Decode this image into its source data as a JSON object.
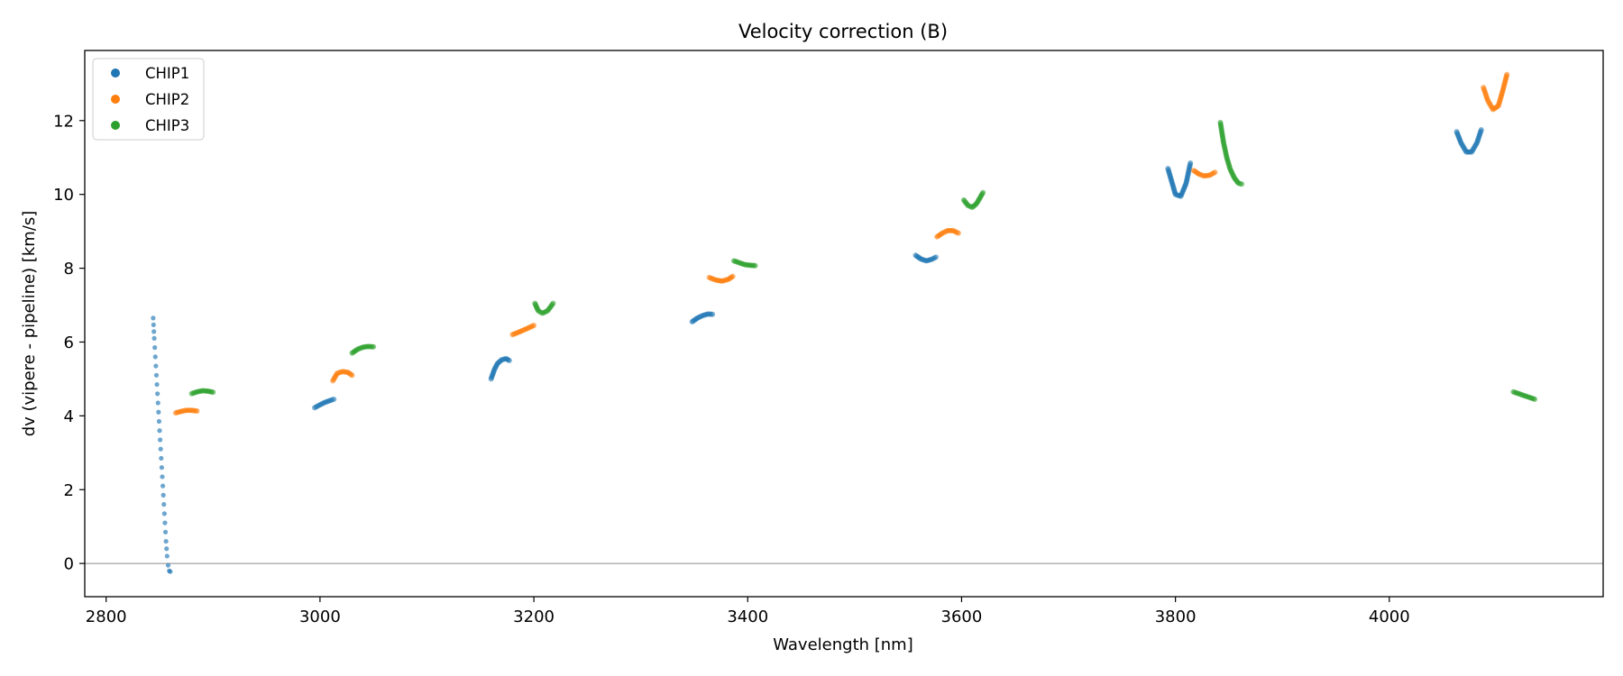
{
  "chart_data": {
    "type": "scatter",
    "title": "Velocity correction (B)",
    "xlabel": "Wavelength [nm]",
    "ylabel": "dv (vipere - pipeline) [km/s]",
    "xlim": [
      2780,
      4200
    ],
    "ylim": [
      -0.9,
      13.9
    ],
    "xticks": [
      2800,
      3000,
      3200,
      3400,
      3600,
      3800,
      4000
    ],
    "yticks": [
      0,
      2,
      4,
      6,
      8,
      10,
      12
    ],
    "grid": false,
    "legend_position": "top-left",
    "reference_line_y": 0,
    "series": [
      {
        "name": "CHIP1",
        "color": "#1f77b4",
        "segments": [
          [
            [
              2844,
              6.65
            ],
            [
              2845,
              6.1
            ],
            [
              2846,
              5.6
            ],
            [
              2847,
              5.1
            ],
            [
              2848,
              4.6
            ],
            [
              2849,
              4.1
            ],
            [
              2850,
              3.6
            ],
            [
              2851,
              3.1
            ],
            [
              2852,
              2.6
            ],
            [
              2853,
              2.1
            ],
            [
              2854,
              1.6
            ],
            [
              2855,
              1.1
            ],
            [
              2856,
              0.6
            ],
            [
              2857,
              0.2
            ],
            [
              2858,
              -0.05
            ],
            [
              2859,
              -0.2
            ],
            [
              2860,
              -0.22
            ]
          ],
          [
            [
              2995,
              4.22
            ],
            [
              3000,
              4.3
            ],
            [
              3005,
              4.37
            ],
            [
              3010,
              4.42
            ],
            [
              3013,
              4.45
            ]
          ],
          [
            [
              3160,
              5.0
            ],
            [
              3163,
              5.25
            ],
            [
              3166,
              5.42
            ],
            [
              3170,
              5.52
            ],
            [
              3174,
              5.55
            ],
            [
              3177,
              5.5
            ]
          ],
          [
            [
              3348,
              6.55
            ],
            [
              3353,
              6.65
            ],
            [
              3358,
              6.72
            ],
            [
              3363,
              6.76
            ],
            [
              3367,
              6.75
            ]
          ],
          [
            [
              3557,
              8.35
            ],
            [
              3562,
              8.25
            ],
            [
              3567,
              8.2
            ],
            [
              3572,
              8.24
            ],
            [
              3576,
              8.3
            ]
          ],
          [
            [
              3793,
              10.7
            ],
            [
              3796,
              10.4
            ],
            [
              3800,
              10.0
            ],
            [
              3805,
              9.95
            ],
            [
              3810,
              10.3
            ],
            [
              3814,
              10.85
            ]
          ],
          [
            [
              4063,
              11.7
            ],
            [
              4067,
              11.4
            ],
            [
              4072,
              11.15
            ],
            [
              4077,
              11.15
            ],
            [
              4082,
              11.4
            ],
            [
              4086,
              11.75
            ]
          ]
        ]
      },
      {
        "name": "CHIP2",
        "color": "#ff7f0e",
        "segments": [
          [
            [
              2865,
              4.08
            ],
            [
              2870,
              4.12
            ],
            [
              2875,
              4.15
            ],
            [
              2880,
              4.15
            ],
            [
              2885,
              4.13
            ]
          ],
          [
            [
              3012,
              4.95
            ],
            [
              3016,
              5.15
            ],
            [
              3021,
              5.2
            ],
            [
              3026,
              5.18
            ],
            [
              3030,
              5.1
            ]
          ],
          [
            [
              3180,
              6.2
            ],
            [
              3187,
              6.28
            ],
            [
              3194,
              6.37
            ],
            [
              3200,
              6.45
            ]
          ],
          [
            [
              3364,
              7.75
            ],
            [
              3370,
              7.68
            ],
            [
              3376,
              7.65
            ],
            [
              3382,
              7.7
            ],
            [
              3386,
              7.78
            ]
          ],
          [
            [
              3577,
              8.85
            ],
            [
              3582,
              8.95
            ],
            [
              3587,
              9.02
            ],
            [
              3592,
              9.02
            ],
            [
              3597,
              8.95
            ]
          ],
          [
            [
              3817,
              10.65
            ],
            [
              3822,
              10.55
            ],
            [
              3827,
              10.5
            ],
            [
              3832,
              10.52
            ],
            [
              3837,
              10.6
            ]
          ],
          [
            [
              4088,
              12.9
            ],
            [
              4092,
              12.55
            ],
            [
              4097,
              12.3
            ],
            [
              4102,
              12.4
            ],
            [
              4106,
              12.8
            ],
            [
              4110,
              13.25
            ]
          ]
        ]
      },
      {
        "name": "CHIP3",
        "color": "#2ca02c",
        "segments": [
          [
            [
              2880,
              4.6
            ],
            [
              2885,
              4.65
            ],
            [
              2890,
              4.68
            ],
            [
              2895,
              4.67
            ],
            [
              2900,
              4.64
            ]
          ],
          [
            [
              3030,
              5.7
            ],
            [
              3035,
              5.8
            ],
            [
              3040,
              5.86
            ],
            [
              3045,
              5.88
            ],
            [
              3050,
              5.87
            ]
          ],
          [
            [
              3201,
              7.05
            ],
            [
              3204,
              6.85
            ],
            [
              3208,
              6.78
            ],
            [
              3213,
              6.85
            ],
            [
              3218,
              7.05
            ]
          ],
          [
            [
              3387,
              8.2
            ],
            [
              3392,
              8.15
            ],
            [
              3397,
              8.1
            ],
            [
              3402,
              8.08
            ],
            [
              3407,
              8.07
            ]
          ],
          [
            [
              3602,
              9.85
            ],
            [
              3606,
              9.7
            ],
            [
              3610,
              9.65
            ],
            [
              3614,
              9.75
            ],
            [
              3618,
              9.95
            ],
            [
              3620,
              10.05
            ]
          ],
          [
            [
              3842,
              11.95
            ],
            [
              3845,
              11.4
            ],
            [
              3848,
              11.0
            ],
            [
              3851,
              10.7
            ],
            [
              3855,
              10.45
            ],
            [
              3859,
              10.3
            ],
            [
              3862,
              10.28
            ]
          ],
          [
            [
              4116,
              4.65
            ],
            [
              4121,
              4.6
            ],
            [
              4126,
              4.55
            ],
            [
              4131,
              4.5
            ],
            [
              4136,
              4.45
            ]
          ]
        ]
      }
    ]
  }
}
